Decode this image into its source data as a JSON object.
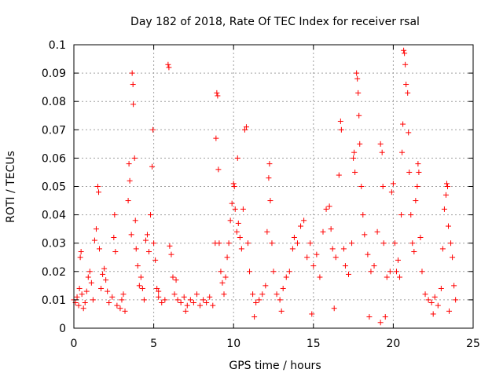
{
  "chart_data": {
    "type": "scatter",
    "title": "Day 182 of 2018, Rate Of TEC Index for receiver rsal",
    "xlabel": "GPS time / hours",
    "ylabel": "ROTI / TECUs",
    "xlim": [
      0,
      25
    ],
    "ylim": [
      0,
      0.1
    ],
    "x_ticks": [
      "0",
      "5",
      "10",
      "15",
      "20",
      "25"
    ],
    "y_ticks": [
      "0",
      "0.01",
      "0.02",
      "0.03",
      "0.04",
      "0.05",
      "0.06",
      "0.07",
      "0.08",
      "0.09",
      "0.1"
    ],
    "grid": true,
    "marker": "+",
    "color": "#ff0000",
    "series": [
      {
        "points": [
          [
            0.1,
            0.009
          ],
          [
            0.2,
            0.011
          ],
          [
            0.3,
            0.008
          ],
          [
            0.35,
            0.014
          ],
          [
            0.4,
            0.025
          ],
          [
            0.45,
            0.027
          ],
          [
            0.5,
            0.012
          ],
          [
            0.6,
            0.007
          ],
          [
            0.7,
            0.009
          ],
          [
            0.8,
            0.013
          ],
          [
            0.9,
            0.018
          ],
          [
            1.0,
            0.02
          ],
          [
            1.1,
            0.016
          ],
          [
            1.2,
            0.01
          ],
          [
            1.3,
            0.031
          ],
          [
            1.4,
            0.035
          ],
          [
            1.5,
            0.05
          ],
          [
            1.55,
            0.048
          ],
          [
            1.6,
            0.028
          ],
          [
            1.7,
            0.014
          ],
          [
            1.8,
            0.019
          ],
          [
            1.9,
            0.021
          ],
          [
            2.0,
            0.017
          ],
          [
            2.1,
            0.013
          ],
          [
            2.2,
            0.009
          ],
          [
            2.4,
            0.011
          ],
          [
            2.5,
            0.032
          ],
          [
            2.55,
            0.04
          ],
          [
            2.6,
            0.027
          ],
          [
            2.7,
            0.008
          ],
          [
            2.9,
            0.007
          ],
          [
            3.0,
            0.01
          ],
          [
            3.1,
            0.012
          ],
          [
            3.2,
            0.006
          ],
          [
            3.4,
            0.045
          ],
          [
            3.45,
            0.058
          ],
          [
            3.5,
            0.052
          ],
          [
            3.6,
            0.033
          ],
          [
            3.65,
            0.09
          ],
          [
            3.7,
            0.086
          ],
          [
            3.72,
            0.079
          ],
          [
            3.8,
            0.06
          ],
          [
            3.85,
            0.038
          ],
          [
            3.9,
            0.028
          ],
          [
            4.0,
            0.022
          ],
          [
            4.1,
            0.015
          ],
          [
            4.2,
            0.018
          ],
          [
            4.3,
            0.014
          ],
          [
            4.4,
            0.01
          ],
          [
            4.5,
            0.031
          ],
          [
            4.6,
            0.033
          ],
          [
            4.7,
            0.027
          ],
          [
            4.8,
            0.04
          ],
          [
            4.9,
            0.057
          ],
          [
            4.95,
            0.07
          ],
          [
            5.0,
            0.03
          ],
          [
            5.1,
            0.024
          ],
          [
            5.2,
            0.014
          ],
          [
            5.3,
            0.011
          ],
          [
            5.5,
            0.009
          ],
          [
            5.7,
            0.01
          ],
          [
            5.9,
            0.093
          ],
          [
            5.95,
            0.092
          ],
          [
            6.0,
            0.029
          ],
          [
            6.1,
            0.026
          ],
          [
            6.2,
            0.018
          ],
          [
            6.3,
            0.012
          ],
          [
            6.5,
            0.01
          ],
          [
            6.7,
            0.009
          ],
          [
            6.9,
            0.011
          ],
          [
            7.1,
            0.008
          ],
          [
            7.3,
            0.01
          ],
          [
            7.5,
            0.009
          ],
          [
            7.7,
            0.012
          ],
          [
            7.9,
            0.008
          ],
          [
            8.1,
            0.01
          ],
          [
            8.3,
            0.009
          ],
          [
            8.5,
            0.011
          ],
          [
            8.7,
            0.008
          ],
          [
            8.85,
            0.03
          ],
          [
            8.9,
            0.067
          ],
          [
            8.95,
            0.083
          ],
          [
            9.0,
            0.082
          ],
          [
            9.05,
            0.056
          ],
          [
            9.1,
            0.03
          ],
          [
            9.2,
            0.02
          ],
          [
            9.3,
            0.016
          ],
          [
            9.4,
            0.012
          ],
          [
            9.5,
            0.018
          ],
          [
            9.6,
            0.025
          ],
          [
            9.7,
            0.03
          ],
          [
            9.8,
            0.038
          ],
          [
            9.9,
            0.044
          ],
          [
            10.0,
            0.051
          ],
          [
            10.05,
            0.05
          ],
          [
            10.1,
            0.042
          ],
          [
            10.2,
            0.034
          ],
          [
            10.25,
            0.06
          ],
          [
            10.3,
            0.037
          ],
          [
            10.4,
            0.032
          ],
          [
            10.5,
            0.028
          ],
          [
            10.6,
            0.042
          ],
          [
            10.7,
            0.07
          ],
          [
            10.8,
            0.071
          ],
          [
            10.9,
            0.03
          ],
          [
            11.0,
            0.02
          ],
          [
            11.2,
            0.012
          ],
          [
            11.4,
            0.009
          ],
          [
            11.6,
            0.01
          ],
          [
            11.8,
            0.012
          ],
          [
            12.0,
            0.015
          ],
          [
            12.1,
            0.034
          ],
          [
            12.2,
            0.053
          ],
          [
            12.25,
            0.058
          ],
          [
            12.3,
            0.045
          ],
          [
            12.4,
            0.03
          ],
          [
            12.5,
            0.02
          ],
          [
            12.7,
            0.012
          ],
          [
            12.9,
            0.01
          ],
          [
            13.1,
            0.014
          ],
          [
            13.3,
            0.018
          ],
          [
            13.5,
            0.02
          ],
          [
            13.7,
            0.028
          ],
          [
            13.8,
            0.032
          ],
          [
            14.0,
            0.03
          ],
          [
            14.2,
            0.036
          ],
          [
            14.4,
            0.038
          ],
          [
            14.6,
            0.025
          ],
          [
            14.8,
            0.03
          ],
          [
            15.0,
            0.022
          ],
          [
            15.2,
            0.026
          ],
          [
            15.4,
            0.018
          ],
          [
            15.6,
            0.034
          ],
          [
            15.8,
            0.042
          ],
          [
            16.0,
            0.043
          ],
          [
            16.1,
            0.035
          ],
          [
            16.2,
            0.028
          ],
          [
            16.4,
            0.025
          ],
          [
            16.6,
            0.054
          ],
          [
            16.7,
            0.073
          ],
          [
            16.75,
            0.07
          ],
          [
            16.9,
            0.028
          ],
          [
            17.0,
            0.022
          ],
          [
            17.2,
            0.019
          ],
          [
            17.4,
            0.03
          ],
          [
            17.5,
            0.06
          ],
          [
            17.55,
            0.062
          ],
          [
            17.6,
            0.055
          ],
          [
            17.7,
            0.09
          ],
          [
            17.75,
            0.088
          ],
          [
            17.8,
            0.083
          ],
          [
            17.85,
            0.075
          ],
          [
            17.9,
            0.065
          ],
          [
            18.0,
            0.05
          ],
          [
            18.1,
            0.04
          ],
          [
            18.2,
            0.033
          ],
          [
            18.4,
            0.026
          ],
          [
            18.6,
            0.02
          ],
          [
            18.8,
            0.022
          ],
          [
            19.0,
            0.034
          ],
          [
            19.2,
            0.065
          ],
          [
            19.3,
            0.062
          ],
          [
            19.35,
            0.05
          ],
          [
            19.4,
            0.03
          ],
          [
            19.6,
            0.018
          ],
          [
            19.8,
            0.02
          ],
          [
            19.9,
            0.048
          ],
          [
            20.0,
            0.051
          ],
          [
            20.1,
            0.03
          ],
          [
            20.2,
            0.02
          ],
          [
            20.3,
            0.024
          ],
          [
            20.4,
            0.018
          ],
          [
            20.5,
            0.04
          ],
          [
            20.55,
            0.062
          ],
          [
            20.6,
            0.072
          ],
          [
            20.65,
            0.098
          ],
          [
            20.7,
            0.097
          ],
          [
            20.75,
            0.093
          ],
          [
            20.8,
            0.086
          ],
          [
            20.9,
            0.083
          ],
          [
            20.95,
            0.069
          ],
          [
            21.0,
            0.055
          ],
          [
            21.1,
            0.04
          ],
          [
            21.2,
            0.03
          ],
          [
            21.3,
            0.027
          ],
          [
            21.4,
            0.045
          ],
          [
            21.5,
            0.05
          ],
          [
            21.55,
            0.058
          ],
          [
            21.6,
            0.055
          ],
          [
            21.7,
            0.032
          ],
          [
            21.8,
            0.02
          ],
          [
            22.0,
            0.012
          ],
          [
            22.2,
            0.01
          ],
          [
            22.4,
            0.009
          ],
          [
            22.6,
            0.011
          ],
          [
            22.8,
            0.008
          ],
          [
            23.0,
            0.014
          ],
          [
            23.1,
            0.028
          ],
          [
            23.2,
            0.042
          ],
          [
            23.3,
            0.047
          ],
          [
            23.35,
            0.051
          ],
          [
            23.4,
            0.05
          ],
          [
            23.45,
            0.036
          ],
          [
            23.6,
            0.03
          ],
          [
            23.7,
            0.025
          ],
          [
            23.8,
            0.015
          ],
          [
            23.9,
            0.01
          ],
          [
            5.3,
            0.013
          ],
          [
            6.4,
            0.017
          ],
          [
            7.0,
            0.006
          ],
          [
            11.3,
            0.004
          ],
          [
            13.0,
            0.006
          ],
          [
            14.9,
            0.005
          ],
          [
            16.3,
            0.007
          ],
          [
            18.5,
            0.004
          ],
          [
            19.2,
            0.002
          ],
          [
            19.5,
            0.004
          ],
          [
            22.5,
            0.005
          ],
          [
            23.5,
            0.006
          ],
          [
            0.0,
            0.01
          ]
        ]
      }
    ]
  }
}
